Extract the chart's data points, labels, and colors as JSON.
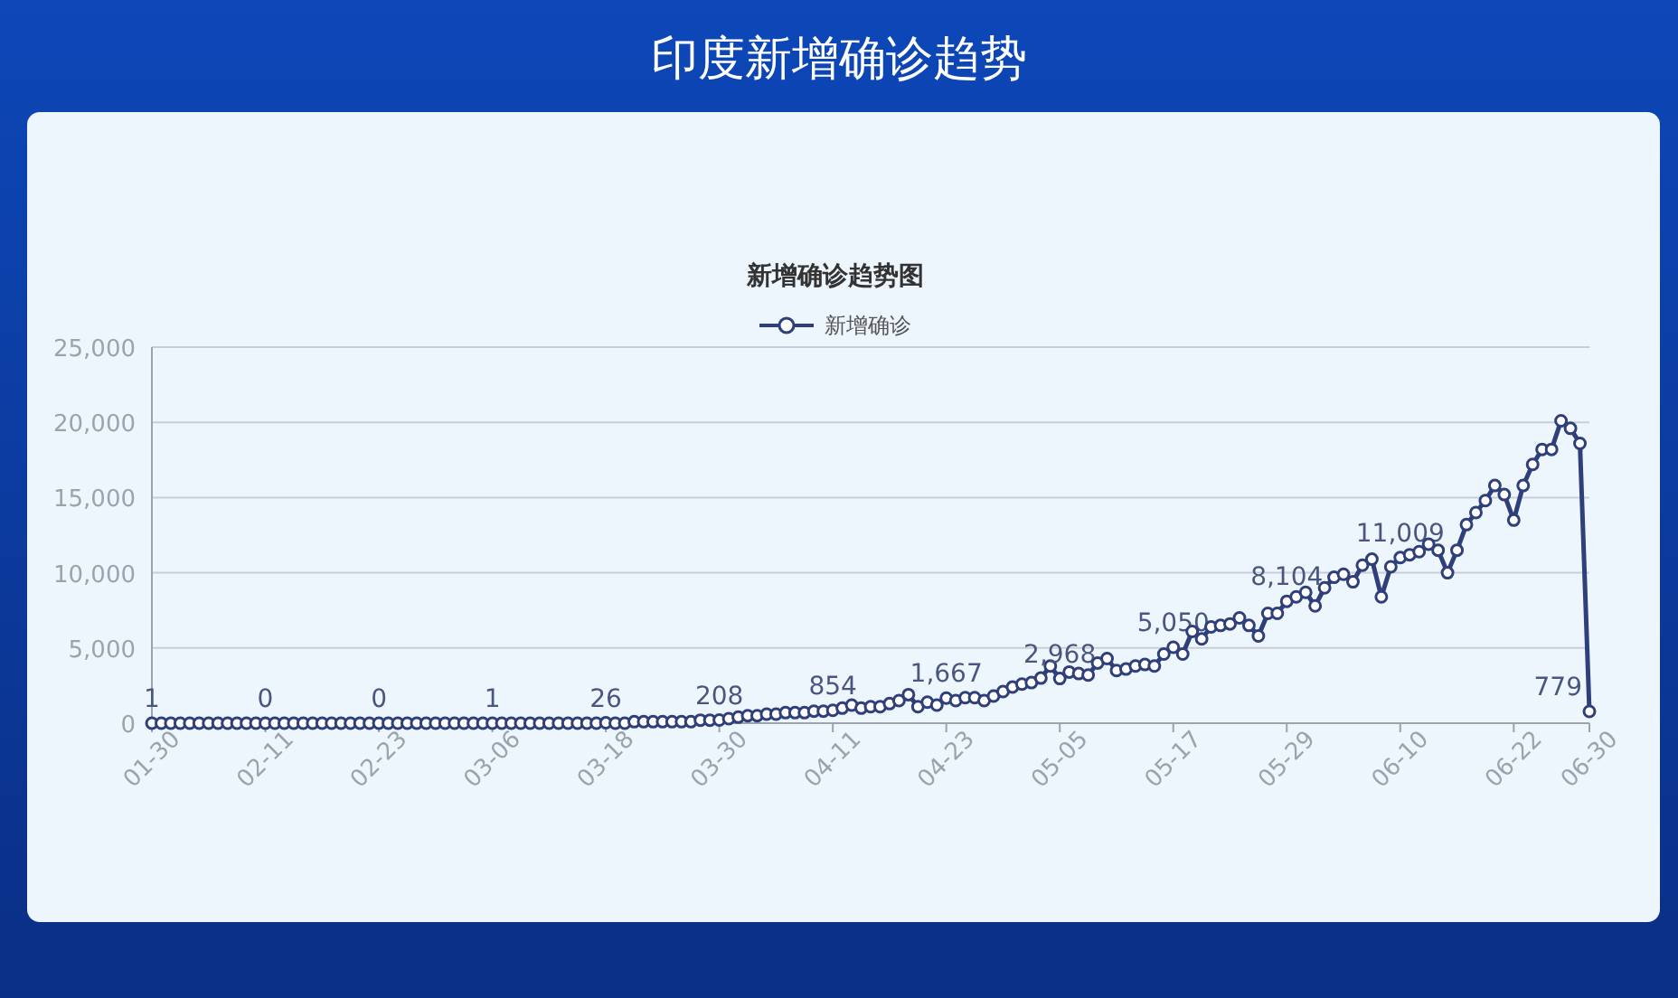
{
  "chart_data": {
    "type": "line",
    "title": "印度新增确诊趋势",
    "subtitle": "新增确诊趋势图",
    "categories": [
      "01-30",
      null,
      null,
      null,
      null,
      null,
      null,
      null,
      null,
      null,
      null,
      null,
      "02-11",
      null,
      null,
      null,
      null,
      null,
      null,
      null,
      null,
      null,
      null,
      null,
      "02-23",
      null,
      null,
      null,
      null,
      null,
      null,
      null,
      null,
      null,
      null,
      null,
      "03-06",
      null,
      null,
      null,
      null,
      null,
      null,
      null,
      null,
      null,
      null,
      null,
      "03-18",
      null,
      null,
      null,
      null,
      null,
      null,
      null,
      null,
      null,
      null,
      null,
      "03-30",
      null,
      null,
      null,
      null,
      null,
      null,
      null,
      null,
      null,
      null,
      null,
      "04-11",
      null,
      null,
      null,
      null,
      null,
      null,
      null,
      null,
      null,
      null,
      null,
      "04-23",
      null,
      null,
      null,
      null,
      null,
      null,
      null,
      null,
      null,
      null,
      null,
      "05-05",
      null,
      null,
      null,
      null,
      null,
      null,
      null,
      null,
      null,
      null,
      null,
      "05-17",
      null,
      null,
      null,
      null,
      null,
      null,
      null,
      null,
      null,
      null,
      null,
      "05-29",
      null,
      null,
      null,
      null,
      null,
      null,
      null,
      null,
      null,
      null,
      null,
      "06-10",
      null,
      null,
      null,
      null,
      null,
      null,
      null,
      null,
      null,
      null,
      null,
      "06-22",
      null,
      null,
      null,
      null,
      null,
      null,
      null,
      "06-30"
    ],
    "series": [
      {
        "name": "新增确诊",
        "color": "#2f3f7a",
        "values": [
          1,
          0,
          0,
          0,
          0,
          0,
          0,
          0,
          0,
          0,
          0,
          0,
          0,
          0,
          0,
          0,
          0,
          0,
          0,
          0,
          0,
          0,
          0,
          0,
          0,
          0,
          0,
          0,
          0,
          0,
          0,
          0,
          0,
          0,
          0,
          0,
          1,
          0,
          0,
          0,
          0,
          0,
          0,
          0,
          0,
          0,
          0,
          0,
          26,
          0,
          0,
          100,
          100,
          100,
          100,
          100,
          100,
          100,
          200,
          200,
          208,
          300,
          400,
          500,
          500,
          600,
          600,
          700,
          700,
          700,
          800,
          800,
          854,
          1000,
          1200,
          1000,
          1100,
          1100,
          1300,
          1500,
          1900,
          1100,
          1400,
          1200,
          1667,
          1500,
          1700,
          1700,
          1500,
          1800,
          2100,
          2400,
          2600,
          2700,
          3000,
          3800,
          2968,
          3400,
          3300,
          3200,
          4000,
          4300,
          3500,
          3600,
          3800,
          3900,
          3800,
          4600,
          5050,
          4600,
          6100,
          5600,
          6400,
          6500,
          6600,
          7000,
          6500,
          5800,
          7300,
          7300,
          8104,
          8400,
          8700,
          7800,
          9000,
          9700,
          9900,
          9400,
          10500,
          10900,
          8400,
          10400,
          11009,
          11200,
          11400,
          11900,
          11500,
          10000,
          11500,
          13200,
          14000,
          14800,
          15800,
          15200,
          13500,
          15800,
          17200,
          18200,
          18200,
          20100,
          19600,
          18600,
          779
        ],
        "value_labels": [
          "1",
          null,
          null,
          null,
          null,
          null,
          null,
          null,
          null,
          null,
          null,
          null,
          "0",
          null,
          null,
          null,
          null,
          null,
          null,
          null,
          null,
          null,
          null,
          null,
          "0",
          null,
          null,
          null,
          null,
          null,
          null,
          null,
          null,
          null,
          null,
          null,
          "1",
          null,
          null,
          null,
          null,
          null,
          null,
          null,
          null,
          null,
          null,
          null,
          "26",
          null,
          null,
          null,
          null,
          null,
          null,
          null,
          null,
          null,
          null,
          null,
          "208",
          null,
          null,
          null,
          null,
          null,
          null,
          null,
          null,
          null,
          null,
          null,
          "854",
          null,
          null,
          null,
          null,
          null,
          null,
          null,
          null,
          null,
          null,
          null,
          "1,667",
          null,
          null,
          null,
          null,
          null,
          null,
          null,
          null,
          null,
          null,
          null,
          "2,968",
          null,
          null,
          null,
          null,
          null,
          null,
          null,
          null,
          null,
          null,
          null,
          "5,050",
          null,
          null,
          null,
          null,
          null,
          null,
          null,
          null,
          null,
          null,
          null,
          "8,104",
          null,
          null,
          null,
          null,
          null,
          null,
          null,
          null,
          null,
          null,
          null,
          "11,009",
          null,
          null,
          null,
          null,
          null,
          null,
          null,
          null,
          null,
          null,
          null,
          null,
          null,
          null,
          null,
          null,
          null,
          null,
          null,
          "779"
        ]
      }
    ],
    "ylim": [
      0,
      25000
    ],
    "yticks": [
      {
        "value": 0,
        "label": "0"
      },
      {
        "value": 5000,
        "label": "5,000"
      },
      {
        "value": 10000,
        "label": "10,000"
      },
      {
        "value": 15000,
        "label": "15,000"
      },
      {
        "value": 20000,
        "label": "20,000"
      },
      {
        "value": 25000,
        "label": "25,000"
      }
    ],
    "grid": "y",
    "legend": "top",
    "marker": "circle",
    "line_style": "solid"
  }
}
